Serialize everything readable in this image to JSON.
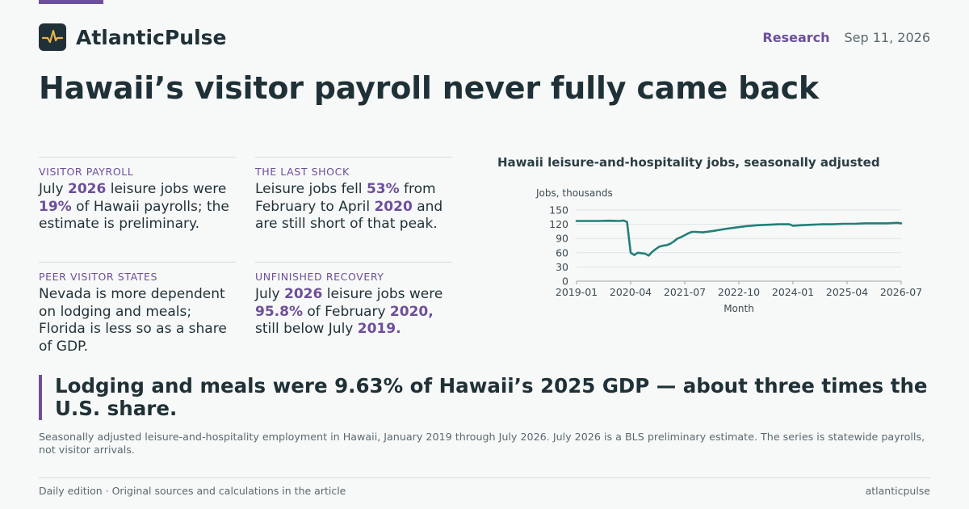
{
  "brand": {
    "name": "AtlanticPulse",
    "icon": "pulse-icon"
  },
  "header": {
    "section": "Research",
    "date": "Sep 11, 2026"
  },
  "headline": "Hawaii’s visitor payroll never fully came back",
  "cards": [
    {
      "label": "VISITOR PAYROLL",
      "parts": [
        [
          "July ",
          false
        ],
        [
          "2026",
          true
        ],
        [
          " leisure jobs were ",
          false
        ],
        [
          "19%",
          true
        ],
        [
          " of Hawaii payrolls; the estimate is preliminary.",
          false
        ]
      ]
    },
    {
      "label": "THE LAST SHOCK",
      "parts": [
        [
          "Leisure jobs fell ",
          false
        ],
        [
          "53%",
          true
        ],
        [
          " from February to April ",
          false
        ],
        [
          "2020",
          true
        ],
        [
          " and are still short of that peak.",
          false
        ]
      ]
    },
    {
      "label": "PEER VISITOR STATES",
      "parts": [
        [
          "Nevada is more dependent on lodging and meals; Florida is less so as a share of GDP.",
          false
        ]
      ]
    },
    {
      "label": "UNFINISHED RECOVERY",
      "parts": [
        [
          "July ",
          false
        ],
        [
          "2026",
          true
        ],
        [
          " leisure jobs were ",
          false
        ],
        [
          "95.8%",
          true
        ],
        [
          " of February ",
          false
        ],
        [
          "2020,",
          true
        ],
        [
          " still below July ",
          false
        ],
        [
          "2019.",
          true
        ]
      ]
    }
  ],
  "takeaway": "Lodging and meals were 9.63% of Hawaii’s 2025 GDP — about three times the U.S. share.",
  "note": "Seasonally adjusted leisure-and-hospitality employment in Hawaii, January 2019 through July 2026. July 2026 is a BLS preliminary estimate. The series is statewide payrolls, not visitor arrivals.",
  "footer": {
    "left": "Daily edition · Original sources and calculations in the article",
    "right": "atlanticpulse"
  },
  "chart_data": {
    "type": "line",
    "title": "Hawaii leisure-and-hospitality jobs, seasonally adjusted",
    "ylabel": "Jobs, thousands",
    "xlabel": "Month",
    "ylim": [
      0,
      150
    ],
    "yticks": [
      0,
      30,
      60,
      90,
      120,
      150
    ],
    "xticks": [
      "2019-01",
      "2020-04",
      "2021-07",
      "2022-10",
      "2024-01",
      "2025-04",
      "2026-07"
    ],
    "grid": true,
    "color": "#237f78",
    "series": [
      {
        "x": [
          "2019-01",
          "2019-04",
          "2019-07",
          "2019-10",
          "2020-01",
          "2020-02",
          "2020-03",
          "2020-04",
          "2020-05",
          "2020-06",
          "2020-07",
          "2020-08",
          "2020-09",
          "2020-10",
          "2020-11",
          "2020-12",
          "2021-01",
          "2021-02",
          "2021-03",
          "2021-04",
          "2021-05",
          "2021-06",
          "2021-07",
          "2021-08",
          "2021-09",
          "2021-10",
          "2021-12",
          "2022-03",
          "2022-06",
          "2022-09",
          "2022-12",
          "2023-03",
          "2023-06",
          "2023-09",
          "2023-12",
          "2024-01",
          "2024-03",
          "2024-06",
          "2024-09",
          "2024-12",
          "2025-03",
          "2025-06",
          "2025-09",
          "2025-12",
          "2026-03",
          "2026-06",
          "2026-07"
        ],
        "y": [
          127,
          127,
          127,
          127.5,
          127,
          128,
          125,
          60,
          55,
          60,
          59,
          58,
          54,
          62,
          68,
          73,
          75,
          76,
          79,
          84,
          90,
          93,
          97,
          101,
          104,
          104,
          103,
          106,
          110,
          113,
          116,
          118,
          119,
          120,
          120,
          117,
          118,
          119,
          120,
          120,
          121,
          121,
          122,
          122,
          122,
          123,
          122
        ]
      }
    ]
  }
}
